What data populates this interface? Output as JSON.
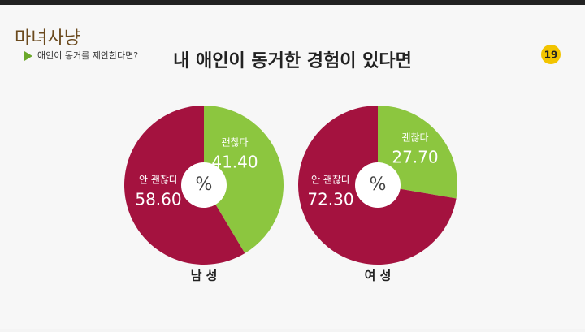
{
  "logo": "마녀사냥",
  "caption": "애인이 동거를 제안한다면?",
  "rating": "19",
  "title": "내 애인이 동거한 경험이 있다면",
  "chart_data": [
    {
      "type": "pie",
      "label": "남 성",
      "center_label": "%",
      "categories": [
        "괜찮다",
        "안 괜찮다"
      ],
      "values": [
        41.4,
        58.6
      ],
      "value_labels": [
        "41.40",
        "58.60"
      ],
      "colors": [
        "#8cc63f",
        "#a4123f"
      ]
    },
    {
      "type": "pie",
      "label": "여 성",
      "center_label": "%",
      "categories": [
        "괜찮다",
        "안 괜찮다"
      ],
      "values": [
        27.7,
        72.3
      ],
      "value_labels": [
        "27.70",
        "72.30"
      ],
      "colors": [
        "#8cc63f",
        "#a4123f"
      ]
    }
  ]
}
